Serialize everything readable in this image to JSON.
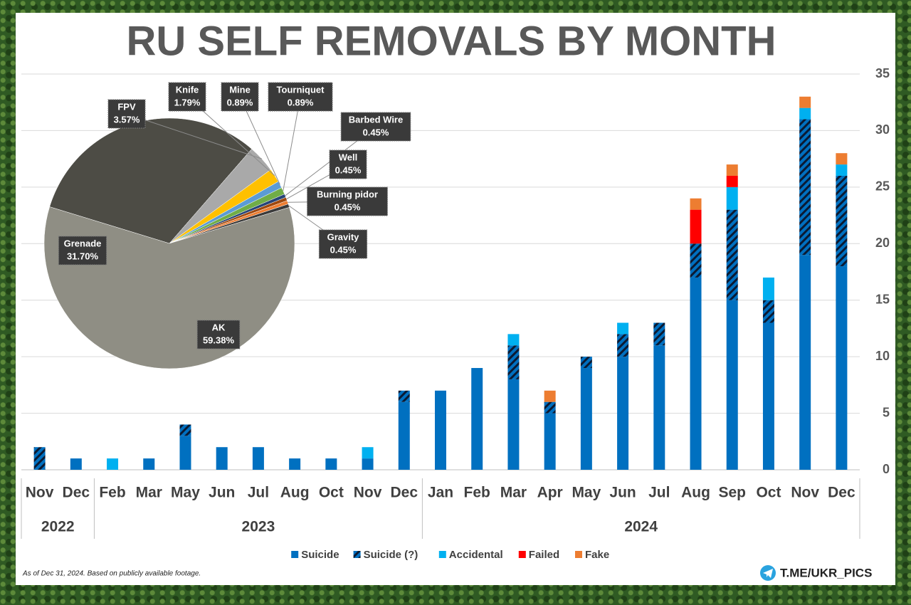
{
  "chart_data": [
    {
      "type": "bar",
      "stacked": true,
      "title": "RU SELF REMOVALS BY MONTH",
      "categories": [
        "Nov",
        "Dec",
        "Feb",
        "Mar",
        "May",
        "Jun",
        "Jul",
        "Aug",
        "Oct",
        "Nov",
        "Dec",
        "Jan",
        "Feb",
        "Mar",
        "Apr",
        "May",
        "Jun",
        "Jul",
        "Aug",
        "Sep",
        "Oct",
        "Nov",
        "Dec"
      ],
      "year_groups": [
        {
          "label": "2022",
          "span": 2
        },
        {
          "label": "2023",
          "span": 9
        },
        {
          "label": "2024",
          "span": 12
        }
      ],
      "series": [
        {
          "name": "Suicide",
          "color": "#0070c0",
          "values": [
            0,
            1,
            0,
            1,
            3,
            2,
            2,
            1,
            1,
            1,
            6,
            7,
            9,
            8,
            5,
            9,
            10,
            11,
            17,
            15,
            13,
            19,
            18
          ]
        },
        {
          "name": "Suicide (?)",
          "color": "#0070c0",
          "hatch": true,
          "values": [
            2,
            0,
            0,
            0,
            1,
            0,
            0,
            0,
            0,
            0,
            1,
            0,
            0,
            3,
            1,
            1,
            2,
            2,
            3,
            8,
            2,
            12,
            8
          ]
        },
        {
          "name": "Accidental",
          "color": "#00b0f0",
          "values": [
            0,
            0,
            1,
            0,
            0,
            0,
            0,
            0,
            0,
            1,
            0,
            0,
            0,
            1,
            0,
            0,
            1,
            0,
            0,
            2,
            2,
            1,
            1
          ]
        },
        {
          "name": "Failed",
          "color": "#ff0000",
          "values": [
            0,
            0,
            0,
            0,
            0,
            0,
            0,
            0,
            0,
            0,
            0,
            0,
            0,
            0,
            0,
            0,
            0,
            0,
            3,
            1,
            0,
            0,
            0
          ]
        },
        {
          "name": "Fake",
          "color": "#ed7d31",
          "values": [
            0,
            0,
            0,
            0,
            0,
            0,
            0,
            0,
            0,
            0,
            0,
            0,
            0,
            0,
            1,
            0,
            0,
            0,
            1,
            1,
            0,
            1,
            1
          ]
        }
      ],
      "ylim": [
        0,
        35
      ],
      "yticks": [
        0,
        5,
        10,
        15,
        20,
        25,
        30,
        35
      ],
      "grid": true,
      "y_axis_side": "right",
      "legend": "bottom",
      "note": "As of Dec 31, 2024. Based on publicly available footage.",
      "source": "T.ME/UKR_PICS"
    },
    {
      "type": "pie",
      "labels": [
        "Grenade",
        "FPV",
        "Knife",
        "Mine",
        "Tourniquet",
        "Barbed Wire",
        "Well",
        "Burning pidor",
        "Gravity",
        "AK"
      ],
      "values": [
        31.7,
        3.57,
        1.79,
        0.89,
        0.89,
        0.45,
        0.45,
        0.45,
        0.45,
        59.38
      ],
      "value_labels": [
        "31.70%",
        "3.57%",
        "1.79%",
        "0.89%",
        "0.89%",
        "0.45%",
        "0.45%",
        "0.45%",
        "0.45%",
        "59.38%"
      ],
      "colors": [
        "#4d4c45",
        "#a9a9a9",
        "#ffc000",
        "#5b9bd5",
        "#70ad47",
        "#264478",
        "#9e480e",
        "#ed7d31",
        "#3a3a3a",
        "#8f8e84"
      ]
    }
  ]
}
